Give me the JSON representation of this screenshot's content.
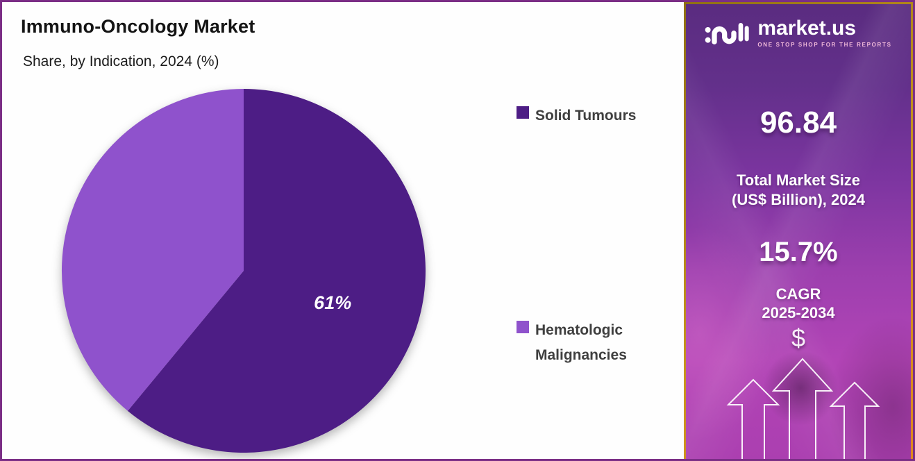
{
  "page": {
    "outer_border_color": "#7b2e86"
  },
  "chart": {
    "title": "Immuno-Oncology Market",
    "subtitle": "Share, by Indication, 2024 (%)"
  },
  "chart_data": {
    "type": "pie",
    "title": "Immuno-Oncology Market Share, by Indication, 2024 (%)",
    "unit": "%",
    "slices": [
      {
        "label": "Solid Tumours",
        "value": 61,
        "color": "#4d1d85",
        "data_label": "61%"
      },
      {
        "label": "Hematologic Malignancies",
        "value": 39,
        "color": "#8f52cc",
        "data_label": ""
      }
    ],
    "start_angle_deg": 0,
    "direction": "clockwise",
    "legend_position": "right",
    "data_label_color": "#ffffff"
  },
  "legend": {
    "items": [
      {
        "label": "Solid Tumours",
        "color": "#4d1d85"
      },
      {
        "label": "Hematologic Malignancies",
        "color": "#8f52cc"
      }
    ]
  },
  "sidebar": {
    "brand": "market.us",
    "tagline": "ONE STOP SHOP FOR THE REPORTS",
    "market_size": {
      "value": "96.84",
      "label_line1": "Total Market Size",
      "label_line2": "(US$ Billion), 2024"
    },
    "cagr": {
      "value": "15.7%",
      "label_line1": "CAGR",
      "label_line2": "2025-2034"
    },
    "dollar_symbol": "$",
    "icons": {
      "logo": "market-us-squiggle-icon",
      "bottom": "three-up-arrows-icon"
    },
    "colors": {
      "gradient_top": "#5a2c80",
      "gradient_bottom": "#ab3fb0",
      "border": "#c8941e",
      "tagline_pink": "#f0b9d9"
    }
  }
}
